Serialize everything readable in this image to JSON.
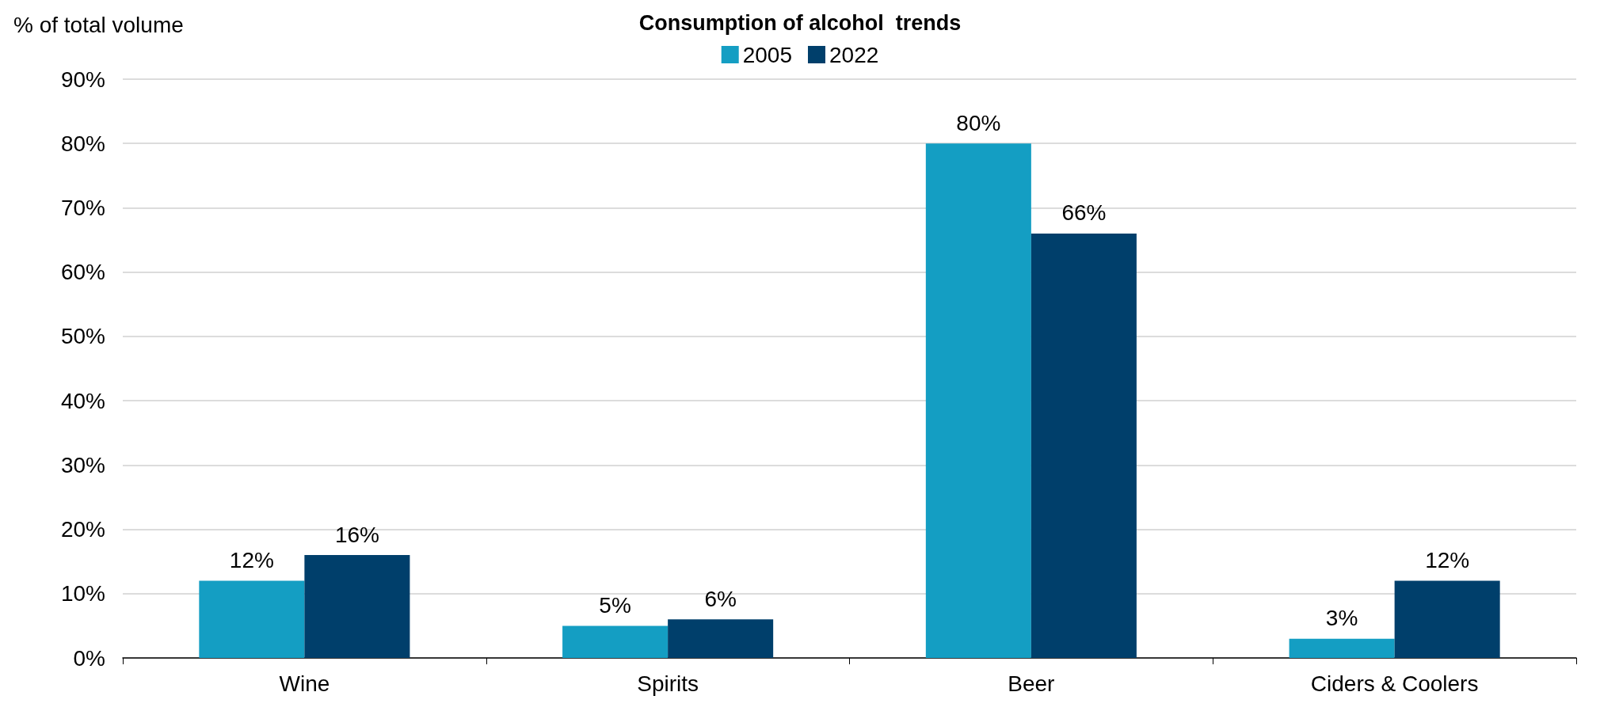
{
  "chart_data": {
    "type": "bar",
    "title": "Consumption of alcohol  trends",
    "ylabel": "% of total volume",
    "categories": [
      "Wine",
      "Spirits",
      "Beer",
      "Ciders & Coolers"
    ],
    "series": [
      {
        "name": "2005",
        "color": "#149ec3",
        "values": [
          12,
          5,
          80,
          3
        ],
        "value_labels": [
          "12%",
          "5%",
          "80%",
          "3%"
        ]
      },
      {
        "name": "2022",
        "color": "#003f6b",
        "values": [
          16,
          6,
          66,
          12
        ],
        "value_labels": [
          "16%",
          "6%",
          "66%",
          "12%"
        ]
      }
    ],
    "ylim": [
      0,
      90
    ],
    "yticks": [
      {
        "value": 0,
        "label": "0%"
      },
      {
        "value": 10,
        "label": "10%"
      },
      {
        "value": 20,
        "label": "20%"
      },
      {
        "value": 30,
        "label": "30%"
      },
      {
        "value": 40,
        "label": "40%"
      },
      {
        "value": 50,
        "label": "50%"
      },
      {
        "value": 60,
        "label": "60%"
      },
      {
        "value": 70,
        "label": "70%"
      },
      {
        "value": 80,
        "label": "80%"
      },
      {
        "value": 90,
        "label": "90%"
      }
    ],
    "grid": "y",
    "legend": "top"
  }
}
